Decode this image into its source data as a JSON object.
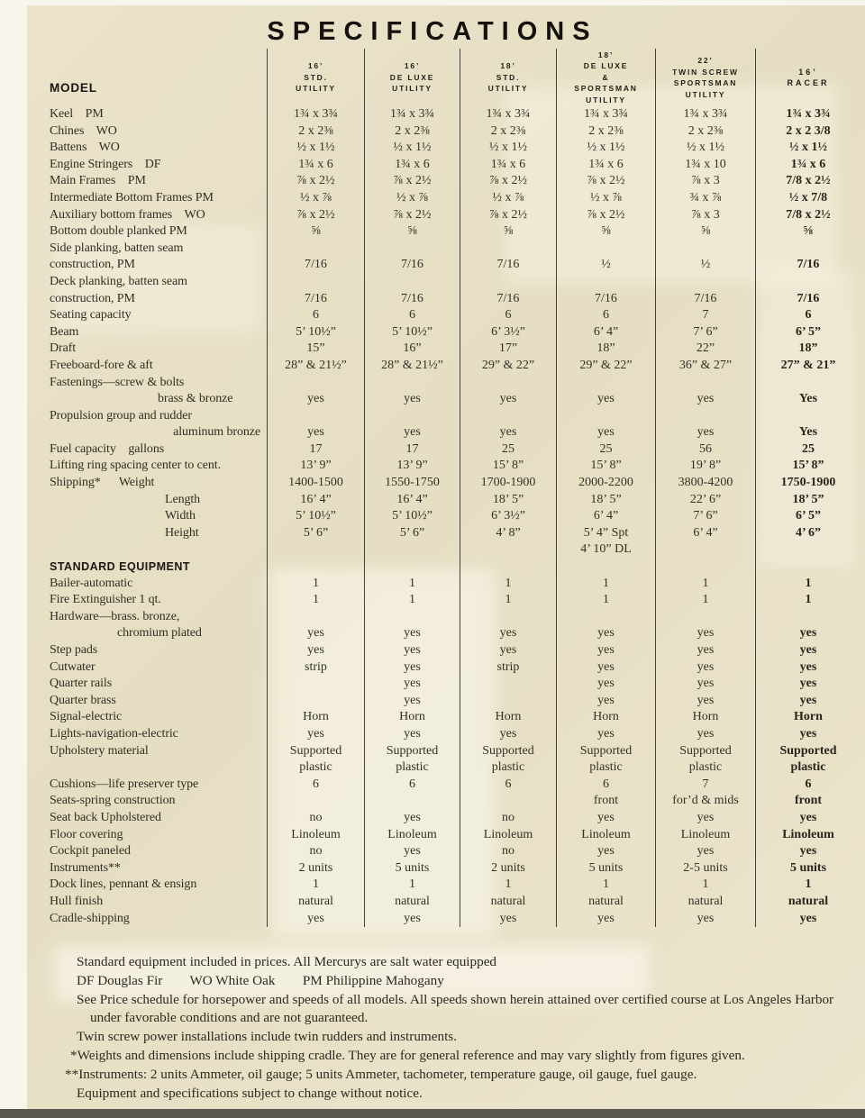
{
  "title": "SPECIFICATIONS",
  "colors": {
    "paper": "#e8e1c6",
    "ink": "#2f2a21",
    "rule": "#464137",
    "bottom_edge": "#5b5750"
  },
  "table": {
    "model_header": "MODEL",
    "columns": [
      "16’\nSTD.\nUTILITY",
      "16’\nDE LUXE\nUTILITY",
      "18’\nSTD.\nUTILITY",
      "18’\nDE LUXE\n&\nSPORTSMAN\nUTILITY",
      "22’\nTWIN SCREW\nSPORTSMAN\nUTILITY",
      "16’\nRACER"
    ],
    "rows": [
      {
        "label": "Keel    PM",
        "values": [
          "1¾ x 3¾",
          "1¾ x 3¾",
          "1¾ x 3¾",
          "1¾ x 3¾",
          "1¾ x 3¾",
          "1¾ x 3¾"
        ]
      },
      {
        "label": "Chines    WO",
        "values": [
          "2 x 2⅜",
          "2 x 2⅜",
          "2 x 2⅜",
          "2 x 2⅜",
          "2 x 2⅜",
          "2 x 2 3/8"
        ]
      },
      {
        "label": "Battens    WO",
        "values": [
          "½ x 1½",
          "½ x 1½",
          "½ x 1½",
          "½ x 1½",
          "½ x 1½",
          "½ x 1½"
        ]
      },
      {
        "label": "Engine Stringers    DF",
        "values": [
          "1¾ x 6",
          "1¾ x 6",
          "1¾ x 6",
          "1¾ x 6",
          "1¾ x 10",
          "1¾ x 6"
        ]
      },
      {
        "label": "Main Frames    PM",
        "values": [
          "⅞ x 2½",
          "⅞ x 2½",
          "⅞ x 2½",
          "⅞ x 2½",
          "⅞ x 3",
          "7/8 x 2½"
        ]
      },
      {
        "label": "Intermediate Bottom Frames PM",
        "values": [
          "½ x ⅞",
          "½ x ⅞",
          "½ x ⅞",
          "½ x ⅞",
          "¾ x ⅞",
          "½ x 7/8"
        ]
      },
      {
        "label": "Auxiliary bottom frames    WO",
        "values": [
          "⅞ x 2½",
          "⅞ x 2½",
          "⅞ x 2½",
          "⅞ x 2½",
          "⅞ x 3",
          "7/8 x 2½"
        ]
      },
      {
        "label": "Bottom double planked PM",
        "values": [
          "⅝",
          "⅝",
          "⅝",
          "⅝",
          "⅝",
          "⅝"
        ]
      },
      {
        "label": "Side planking, batten seam"
      },
      {
        "label": "construction, PM",
        "values": [
          "7/16",
          "7/16",
          "7/16",
          "½",
          "½",
          "7/16"
        ]
      },
      {
        "label": "Deck planking, batten seam"
      },
      {
        "label": "construction, PM",
        "values": [
          "7/16",
          "7/16",
          "7/16",
          "7/16",
          "7/16",
          "7/16"
        ]
      },
      {
        "label": "Seating capacity",
        "values": [
          "6",
          "6",
          "6",
          "6",
          "7",
          "6"
        ]
      },
      {
        "label": "Beam",
        "values": [
          "5’ 10½”",
          "5’ 10½”",
          "6’ 3½”",
          "6’ 4”",
          "7’ 6”",
          "6’ 5”"
        ]
      },
      {
        "label": "Draft",
        "values": [
          "15”",
          "16”",
          "17”",
          "18”",
          "22”",
          "18”"
        ]
      },
      {
        "label": "Freeboard-fore & aft",
        "values": [
          "28” & 21½”",
          "28” & 21½”",
          "29” & 22”",
          "29” & 22”",
          "36” & 27”",
          "27” & 21”"
        ]
      },
      {
        "label": "Fastenings—screw & bolts"
      },
      {
        "label": "brass & bronze",
        "indent": 120,
        "values": [
          "yes",
          "yes",
          "yes",
          "yes",
          "yes",
          "Yes"
        ]
      },
      {
        "label": "Propulsion group and rudder"
      },
      {
        "label": "aluminum bronze",
        "align": "right",
        "values": [
          "yes",
          "yes",
          "yes",
          "yes",
          "yes",
          "Yes"
        ]
      },
      {
        "label": "Fuel capacity    gallons",
        "values": [
          "17",
          "17",
          "25",
          "25",
          "56",
          "25"
        ]
      },
      {
        "label": "Lifting ring spacing center to cent.",
        "values": [
          "13’ 9”",
          "13’ 9”",
          "15’ 8”",
          "15’ 8”",
          "19’ 8”",
          "15’ 8”"
        ]
      },
      {
        "label": "Shipping*      Weight",
        "values": [
          "1400-1500",
          "1550-1750",
          "1700-1900",
          "2000-2200",
          "3800-4200",
          "1750-1900"
        ]
      },
      {
        "label": "Length",
        "indent": 128,
        "values": [
          "16’ 4”",
          "16’ 4”",
          "18’ 5”",
          "18’ 5”",
          "22’ 6”",
          "18’ 5”"
        ]
      },
      {
        "label": "Width",
        "indent": 128,
        "values": [
          "5’ 10½”",
          "5’ 10½”",
          "6’ 3½”",
          "6’ 4”",
          "7’ 6”",
          "6’ 5”"
        ]
      },
      {
        "label": "Height",
        "indent": 128,
        "values": [
          "5’ 6”",
          "5’ 6”",
          "4’ 8”",
          "5’ 4” Spt\n4’ 10” DL",
          "6’ 4”",
          "4’ 6”"
        ]
      },
      {
        "label": "STANDARD EQUIPMENT",
        "section": true
      },
      {
        "label": "Bailer-automatic",
        "values": [
          "1",
          "1",
          "1",
          "1",
          "1",
          "1"
        ]
      },
      {
        "label": "Fire Extinguisher 1 qt.",
        "values": [
          "1",
          "1",
          "1",
          "1",
          "1",
          "1"
        ]
      },
      {
        "label": "Hardware—brass. bronze,"
      },
      {
        "label": "chromium plated",
        "indent": 75,
        "values": [
          "yes",
          "yes",
          "yes",
          "yes",
          "yes",
          "yes"
        ]
      },
      {
        "label": "Step pads",
        "values": [
          "yes",
          "yes",
          "yes",
          "yes",
          "yes",
          "yes"
        ]
      },
      {
        "label": "Cutwater",
        "values": [
          "strip",
          "yes",
          "strip",
          "yes",
          "yes",
          "yes"
        ]
      },
      {
        "label": "Quarter rails",
        "values": [
          "",
          "yes",
          "",
          "yes",
          "yes",
          "yes"
        ]
      },
      {
        "label": "Quarter brass",
        "values": [
          "",
          "yes",
          "",
          "yes",
          "yes",
          "yes"
        ]
      },
      {
        "label": "Signal-electric",
        "values": [
          "Horn",
          "Horn",
          "Horn",
          "Horn",
          "Horn",
          "Horn"
        ]
      },
      {
        "label": "Lights-navigation-electric",
        "values": [
          "yes",
          "yes",
          "yes",
          "yes",
          "yes",
          "yes"
        ]
      },
      {
        "label": "Upholstery material",
        "values": [
          "Supported\nplastic",
          "Supported\nplastic",
          "Supported\nplastic",
          "Supported\nplastic",
          "Supported\nplastic",
          "Supported\nplastic"
        ]
      },
      {
        "label": "Cushions—life preserver type",
        "values": [
          "6",
          "6",
          "6",
          "6",
          "7",
          "6"
        ]
      },
      {
        "label": "Seats-spring construction",
        "values": [
          "",
          "",
          "",
          "front",
          "for’d & mids",
          "front"
        ]
      },
      {
        "label": "Seat back Upholstered",
        "values": [
          "no",
          "yes",
          "no",
          "yes",
          "yes",
          "yes"
        ]
      },
      {
        "label": "Floor covering",
        "values": [
          "Linoleum",
          "Linoleum",
          "Linoleum",
          "Linoleum",
          "Linoleum",
          "Linoleum"
        ]
      },
      {
        "label": "Cockpit paneled",
        "values": [
          "no",
          "yes",
          "no",
          "yes",
          "yes",
          "yes"
        ]
      },
      {
        "label": "Instruments**",
        "values": [
          "2 units",
          "5 units",
          "2 units",
          "5 units",
          "2-5 units",
          "5 units"
        ]
      },
      {
        "label": "Dock lines, pennant & ensign",
        "values": [
          "1",
          "1",
          "1",
          "1",
          "1",
          "1"
        ]
      },
      {
        "label": "Hull finish",
        "values": [
          "natural",
          "natural",
          "natural",
          "natural",
          "natural",
          "natural"
        ]
      },
      {
        "label": "Cradle-shipping",
        "values": [
          "yes",
          "yes",
          "yes",
          "yes",
          "yes",
          "yes"
        ]
      }
    ]
  },
  "footnotes": [
    "Standard equipment included in prices. All Mercurys are salt water equipped",
    "DF Douglas Fir        WO White Oak        PM Philippine Mahogany",
    "See Price schedule for horsepower and speeds of all models. All speeds shown herein attained over certified course at Los Angeles Harbor under favorable conditions and are not guaranteed.",
    "Twin screw power installations include twin rudders and instruments.",
    "*Weights and dimensions include shipping cradle. They are for general reference and may vary slightly from figures given.",
    "**Instruments: 2 units Ammeter, oil gauge; 5 units Ammeter, tachometer, temperature gauge, oil gauge, fuel gauge.",
    "Equipment and specifications subject to change without notice."
  ]
}
